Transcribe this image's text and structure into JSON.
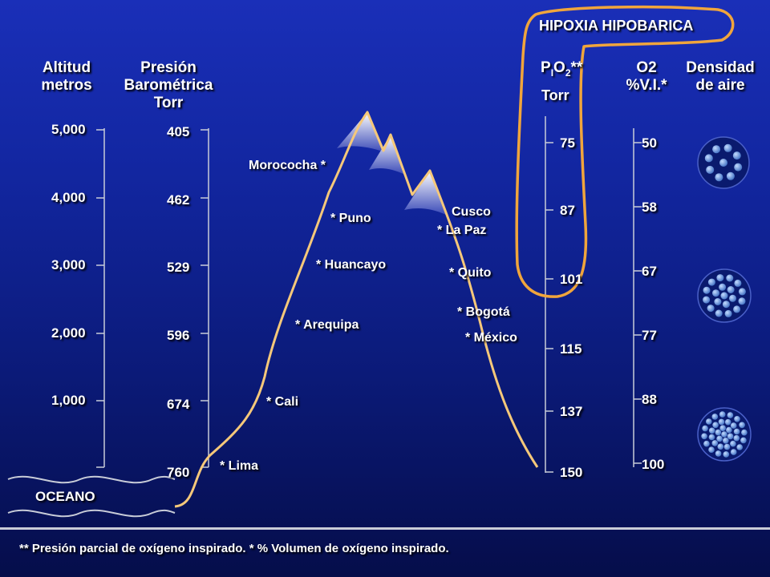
{
  "headers": {
    "altitude": [
      "Altitud",
      "metros"
    ],
    "pressure": [
      "Presión",
      "Barométrica",
      "Torr"
    ],
    "pio2_main": "P",
    "pio2_sub1": "I",
    "pio2_mid": "O",
    "pio2_sub2": "2",
    "pio2_stars": "**",
    "pio2_unit": "Torr",
    "o2": [
      "O2",
      "%V.I.*"
    ],
    "density": [
      "Densidad",
      "de aire"
    ]
  },
  "highlight_title": "HIPOXIA HIPOBARICA",
  "scales": {
    "altitude": [
      "5,000",
      "4,000",
      "3,000",
      "2,000",
      "1,000"
    ],
    "pressure": [
      "405",
      "462",
      "529",
      "596",
      "674",
      "760"
    ],
    "pio2": [
      "75",
      "87",
      "101",
      "115",
      "137",
      "150"
    ],
    "o2": [
      "50",
      "58",
      "67",
      "77",
      "88",
      "100"
    ]
  },
  "cities": {
    "morococha": "Morococha  *",
    "puno": "* Puno",
    "huancayo": "* Huancayo",
    "arequipa": "* Arequipa",
    "cali": "* Cali",
    "lima": "* Lima",
    "cusco": "Cusco",
    "lapaz": "*  La Paz",
    "quito": "*  Quito",
    "bogota": "*  Bogotá",
    "mexico": "*  México"
  },
  "ocean_label": "OCEANO",
  "footnote": "** Presión parcial de oxígeno inspirado. * % Volumen de oxígeno inspirado.",
  "colors": {
    "mountain_line": "#f5c87a",
    "highlight_outline": "#f0a53c",
    "axis": "#c8ccd8",
    "molecule": "#7aa8e8",
    "circle_bg": "#0a1a6e"
  }
}
